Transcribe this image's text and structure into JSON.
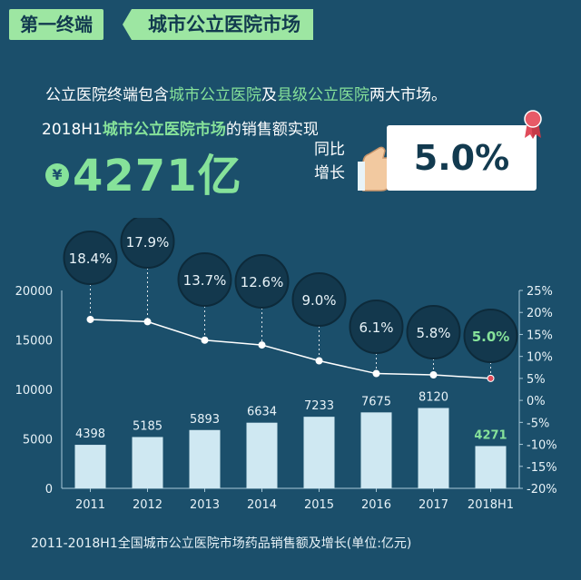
{
  "header": {
    "tag_left": "第一终端",
    "tag_right": "城市公立医院市场"
  },
  "intro": {
    "text1": "公立医院终端包含",
    "hl1": "城市公立医院",
    "text2": "及",
    "hl2": "县级公立医院",
    "text3": "两大市场。"
  },
  "headline": {
    "prefix": "2018H1",
    "hl": "城市公立医院市场",
    "suffix": "的销售额实现"
  },
  "big_value": {
    "currency_symbol": "¥",
    "value": "4271亿"
  },
  "yoy": {
    "label_line1": "同比",
    "label_line2": "增长",
    "value": "5.0%"
  },
  "caption": "2011-2018H1全国城市公立医院市场药品销售额及增长(单位:亿元)",
  "colors": {
    "background": "#1b4f6b",
    "accent_green": "#86e29a",
    "bar": "#cfe8f2",
    "line": "#ffffff",
    "bubble": "#13384d",
    "last_point": "#e04b5a"
  },
  "chart_data": {
    "type": "bar",
    "categories": [
      "2011",
      "2012",
      "2013",
      "2014",
      "2015",
      "2016",
      "2017",
      "2018H1"
    ],
    "series": [
      {
        "values": [
          4398,
          5185,
          5893,
          6634,
          7233,
          7675,
          8120,
          4271
        ]
      },
      {
        "type": "line",
        "values": [
          18.4,
          17.9,
          13.7,
          12.6,
          9.0,
          6.1,
          5.8,
          5.0
        ]
      }
    ],
    "bar_labels": [
      "4398",
      "5185",
      "5893",
      "6634",
      "7233",
      "7675",
      "8120",
      "4271"
    ],
    "growth_labels": [
      "18.4%",
      "17.9%",
      "13.7%",
      "12.6%",
      "9.0%",
      "6.1%",
      "5.8%",
      "5.0%"
    ],
    "ylim_left": [
      0,
      20000
    ],
    "ylim_right": [
      -20,
      25
    ],
    "left_ticks": [
      "0",
      "5000",
      "10000",
      "15000",
      "20000"
    ],
    "right_ticks": [
      "-20%",
      "-15%",
      "-10%",
      "-5%",
      "0%",
      "5%",
      "10%",
      "15%",
      "20%",
      "25%"
    ],
    "grid": false
  }
}
